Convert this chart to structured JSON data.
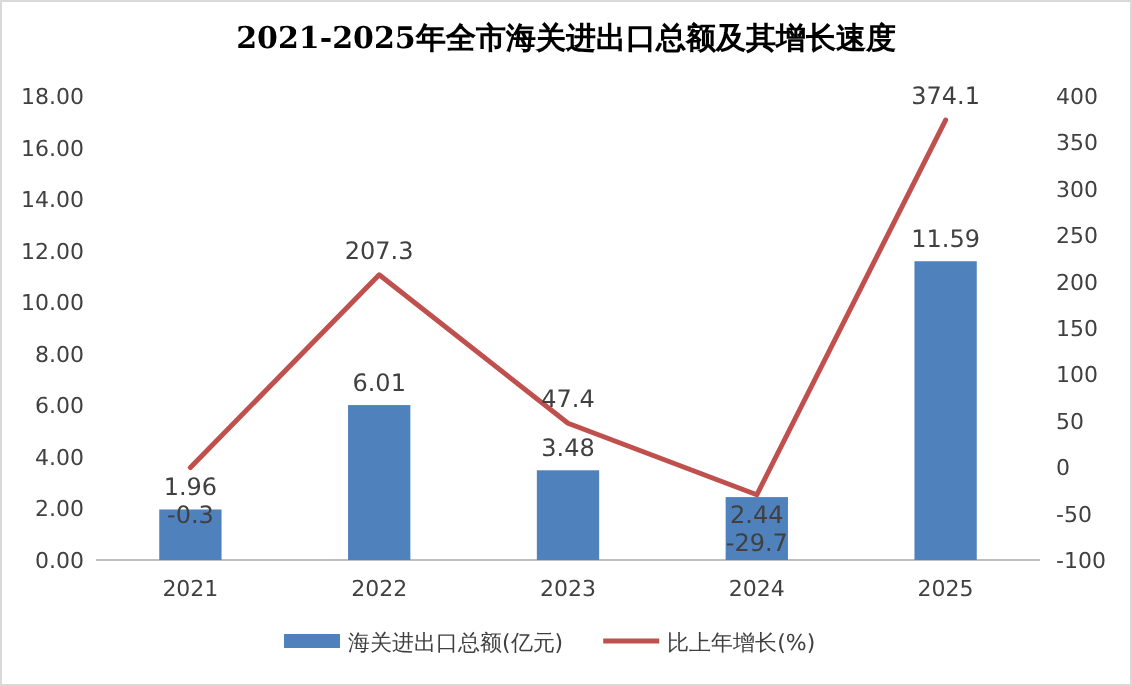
{
  "chart_data": {
    "type": "bar",
    "title": "2021-2025年全市海关进出口总额及其增长速度",
    "categories": [
      "2021",
      "2022",
      "2023",
      "2024",
      "2025"
    ],
    "series": [
      {
        "name": "海关进出口总额(亿元)",
        "color": "#4f81bd",
        "values": [
          1.96,
          6.01,
          3.48,
          2.44,
          11.59
        ]
      },
      {
        "name": "比上年增长(%)",
        "type": "line",
        "axis": "y2",
        "color": "#c0504d",
        "values": [
          -0.3,
          207.3,
          47.4,
          -29.7,
          374.1
        ]
      }
    ],
    "ylim": [
      0,
      18
    ],
    "yticks": [
      {
        "value": 0,
        "label": "0.00"
      },
      {
        "value": 2,
        "label": "2.00"
      },
      {
        "value": 4,
        "label": "4.00"
      },
      {
        "value": 6,
        "label": "6.00"
      },
      {
        "value": 8,
        "label": "8.00"
      },
      {
        "value": 10,
        "label": "10.00"
      },
      {
        "value": 12,
        "label": "12.00"
      },
      {
        "value": 14,
        "label": "14.00"
      },
      {
        "value": 16,
        "label": "16.00"
      },
      {
        "value": 18,
        "label": "18.00"
      }
    ],
    "y2lim": [
      -100,
      400
    ],
    "y2ticks": [
      -100,
      -50,
      0,
      50,
      100,
      150,
      200,
      250,
      300,
      350,
      400
    ],
    "data_labels": true,
    "legend": "bottom",
    "grid": false,
    "marker": "none"
  }
}
